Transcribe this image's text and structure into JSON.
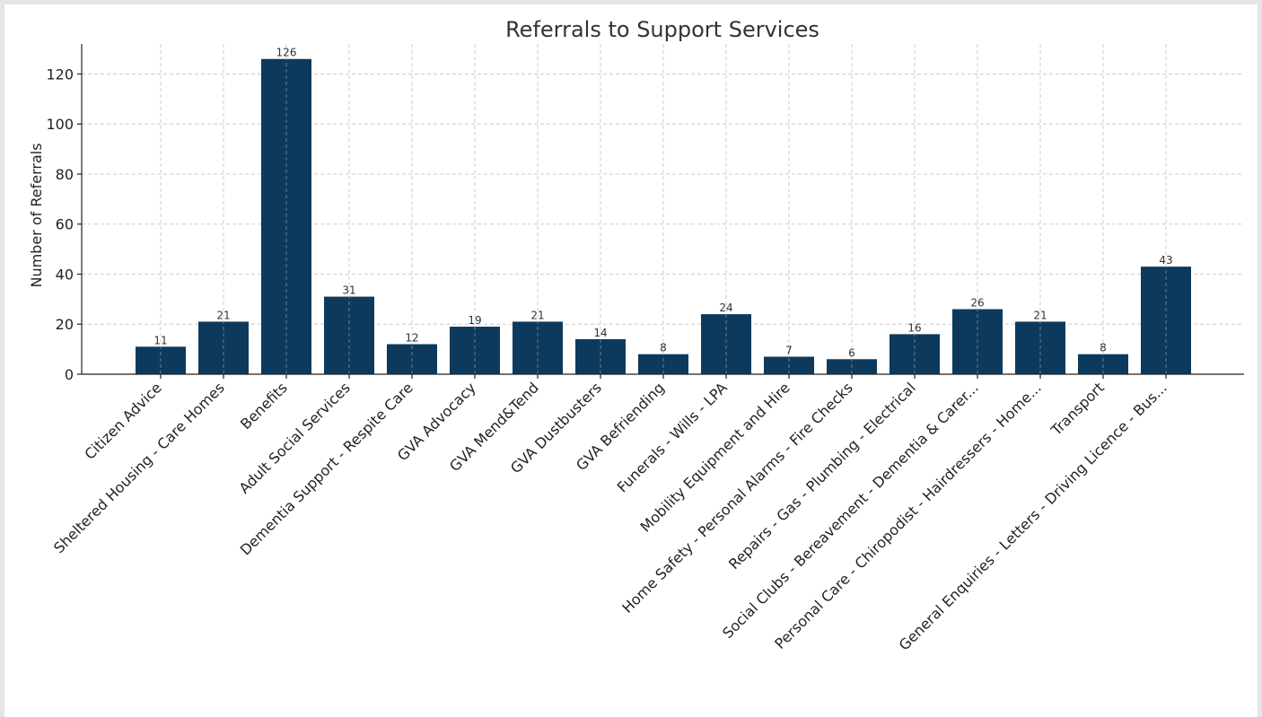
{
  "chart_data": {
    "type": "bar",
    "title": "Referrals to Support Services",
    "xlabel": "",
    "ylabel": "Number of Referrals",
    "ylim": [
      0,
      132
    ],
    "yticks": [
      0,
      20,
      40,
      60,
      80,
      100,
      120
    ],
    "grid": true,
    "bar_color": "#0d3a5c",
    "categories": [
      "Citizen Advice",
      "Sheltered Housing - Care Homes",
      "Benefits",
      "Adult Social Services",
      "Dementia Support - Respite Care",
      "GVA Advocacy",
      "GVA Mend&Tend",
      "GVA Dustbusters",
      "GVA Befriending",
      "Funerals - Wills - LPA",
      "Mobility Equipment and Hire",
      "Home Safety - Personal Alarms - Fire Checks",
      "Repairs - Gas - Plumbing - Electrical",
      "Social Clubs - Bereavement - Dementia & Carer...",
      "Personal Care - Chiropodist - Hairdressers - Home...",
      "Transport",
      "General Enquiries - Letters - Driving Licence - Bus..."
    ],
    "values": [
      11,
      21,
      126,
      31,
      12,
      19,
      21,
      14,
      8,
      24,
      7,
      6,
      16,
      26,
      21,
      8,
      43
    ]
  }
}
